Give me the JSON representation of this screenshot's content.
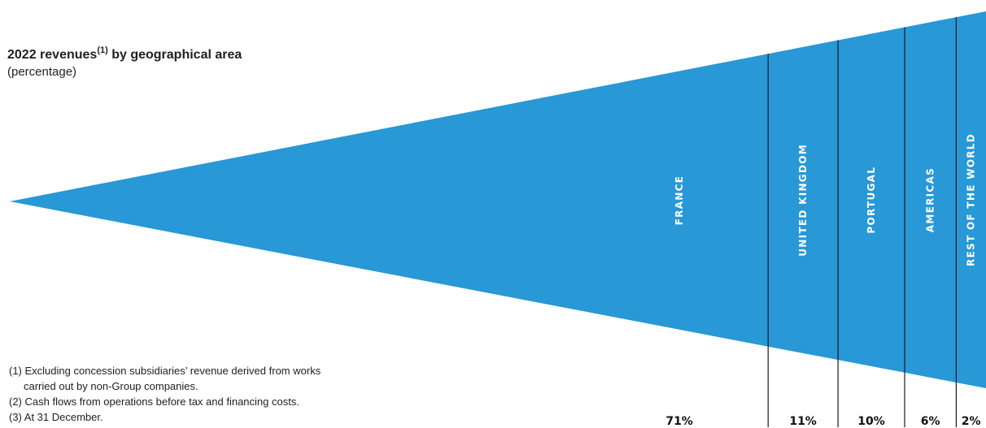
{
  "title": {
    "text": "2022 revenues",
    "sup": "(1)",
    "suffix": " by geographical area"
  },
  "subtitle": "(percentage)",
  "footnotes": [
    "(1) Excluding concession subsidiaries’ revenue derived from works",
    "carried out by non-Group companies.",
    "(2) Cash flows from operations before tax and financing costs.",
    "(3) At 31 December."
  ],
  "chart_data": {
    "type": "bar",
    "orientation": "funnel",
    "categories": [
      "FRANCE",
      "UNITED KINGDOM",
      "PORTUGAL",
      "AMERICAS",
      "REST OF THE WORLD"
    ],
    "values": [
      71,
      11,
      10,
      6,
      2
    ],
    "value_labels": [
      "71%",
      "11%",
      "10%",
      "6%",
      "2%"
    ],
    "unit": "%",
    "color": "#2898d6"
  }
}
